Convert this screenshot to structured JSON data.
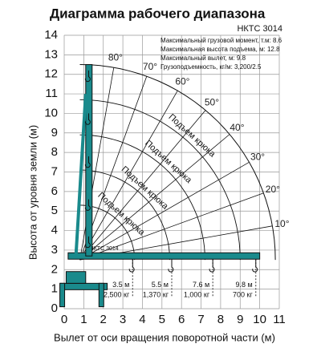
{
  "chart_data": {
    "type": "working-range",
    "title": "Диаграмма рабочего диапазона",
    "model": "НКТС 3014",
    "boom_label": "НКТС 3014",
    "specs": [
      "Максимальный грузовой момент, т.м: 8.6",
      "Максимальная высота подъема, м: 12.8",
      "Максимальный вылет, м: 9.8",
      "Грузоподъемность, кг/м: 3,200/2.5"
    ],
    "x_label": "Вылет от оси вращения поворотной части (м)",
    "y_label": "Высота от уровня земли (м)",
    "xlim": [
      0,
      11
    ],
    "ylim": [
      0,
      14
    ],
    "xticks": [
      0,
      1,
      2,
      3,
      4,
      5,
      6,
      7,
      8,
      9,
      10,
      11
    ],
    "yticks": [
      0,
      1,
      2,
      3,
      4,
      5,
      6,
      7,
      8,
      9,
      10,
      11,
      12,
      13,
      14
    ],
    "grid": true,
    "color": "#1a8a8c",
    "angles": [
      {
        "value": 80,
        "label": "80°"
      },
      {
        "value": 70,
        "label": "70°"
      },
      {
        "value": 60,
        "label": "60°"
      },
      {
        "value": 50,
        "label": "50°"
      },
      {
        "value": 40,
        "label": "40°"
      },
      {
        "value": 30,
        "label": "30°"
      },
      {
        "value": 20,
        "label": "20°"
      },
      {
        "value": 10,
        "label": "10°"
      }
    ],
    "curve_labels": [
      "Подъем крюка",
      "Подъем крюка",
      "Подъем крюка",
      "Подъем крюка"
    ],
    "loads": [
      {
        "reach": 3.5,
        "reach_label": "3.5 м",
        "load": 2500,
        "load_label": "2,500 кг"
      },
      {
        "reach": 5.5,
        "reach_label": "5.5 м",
        "load": 1370,
        "load_label": "1,370 кг"
      },
      {
        "reach": 7.6,
        "reach_label": "7.6 м",
        "load": 1000,
        "load_label": "1,000 кг"
      },
      {
        "reach": 9.8,
        "reach_label": "9.8 м",
        "load": 700,
        "load_label": "700 кг"
      }
    ]
  }
}
